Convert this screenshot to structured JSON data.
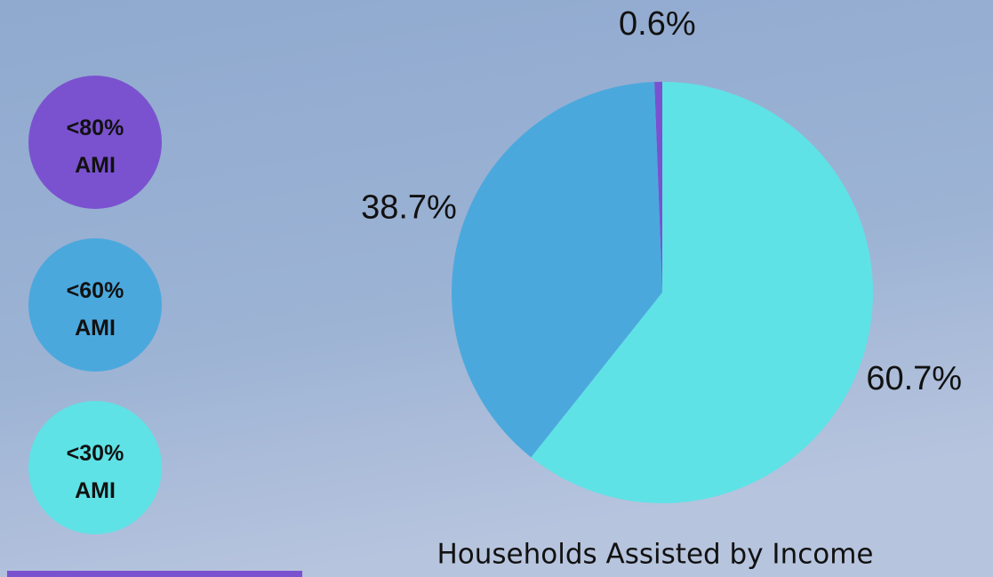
{
  "chart_data": {
    "type": "pie",
    "title": "Households Assisted by Income",
    "categories": [
      "<80% AMI",
      "<60% AMI",
      "<30% AMI"
    ],
    "values": [
      0.6,
      38.7,
      60.7
    ],
    "value_labels": [
      "0.6%",
      "38.7%",
      "60.7%"
    ],
    "colors": [
      "#7a52cf",
      "#4ba8dd",
      "#5ee2e6"
    ]
  }
}
